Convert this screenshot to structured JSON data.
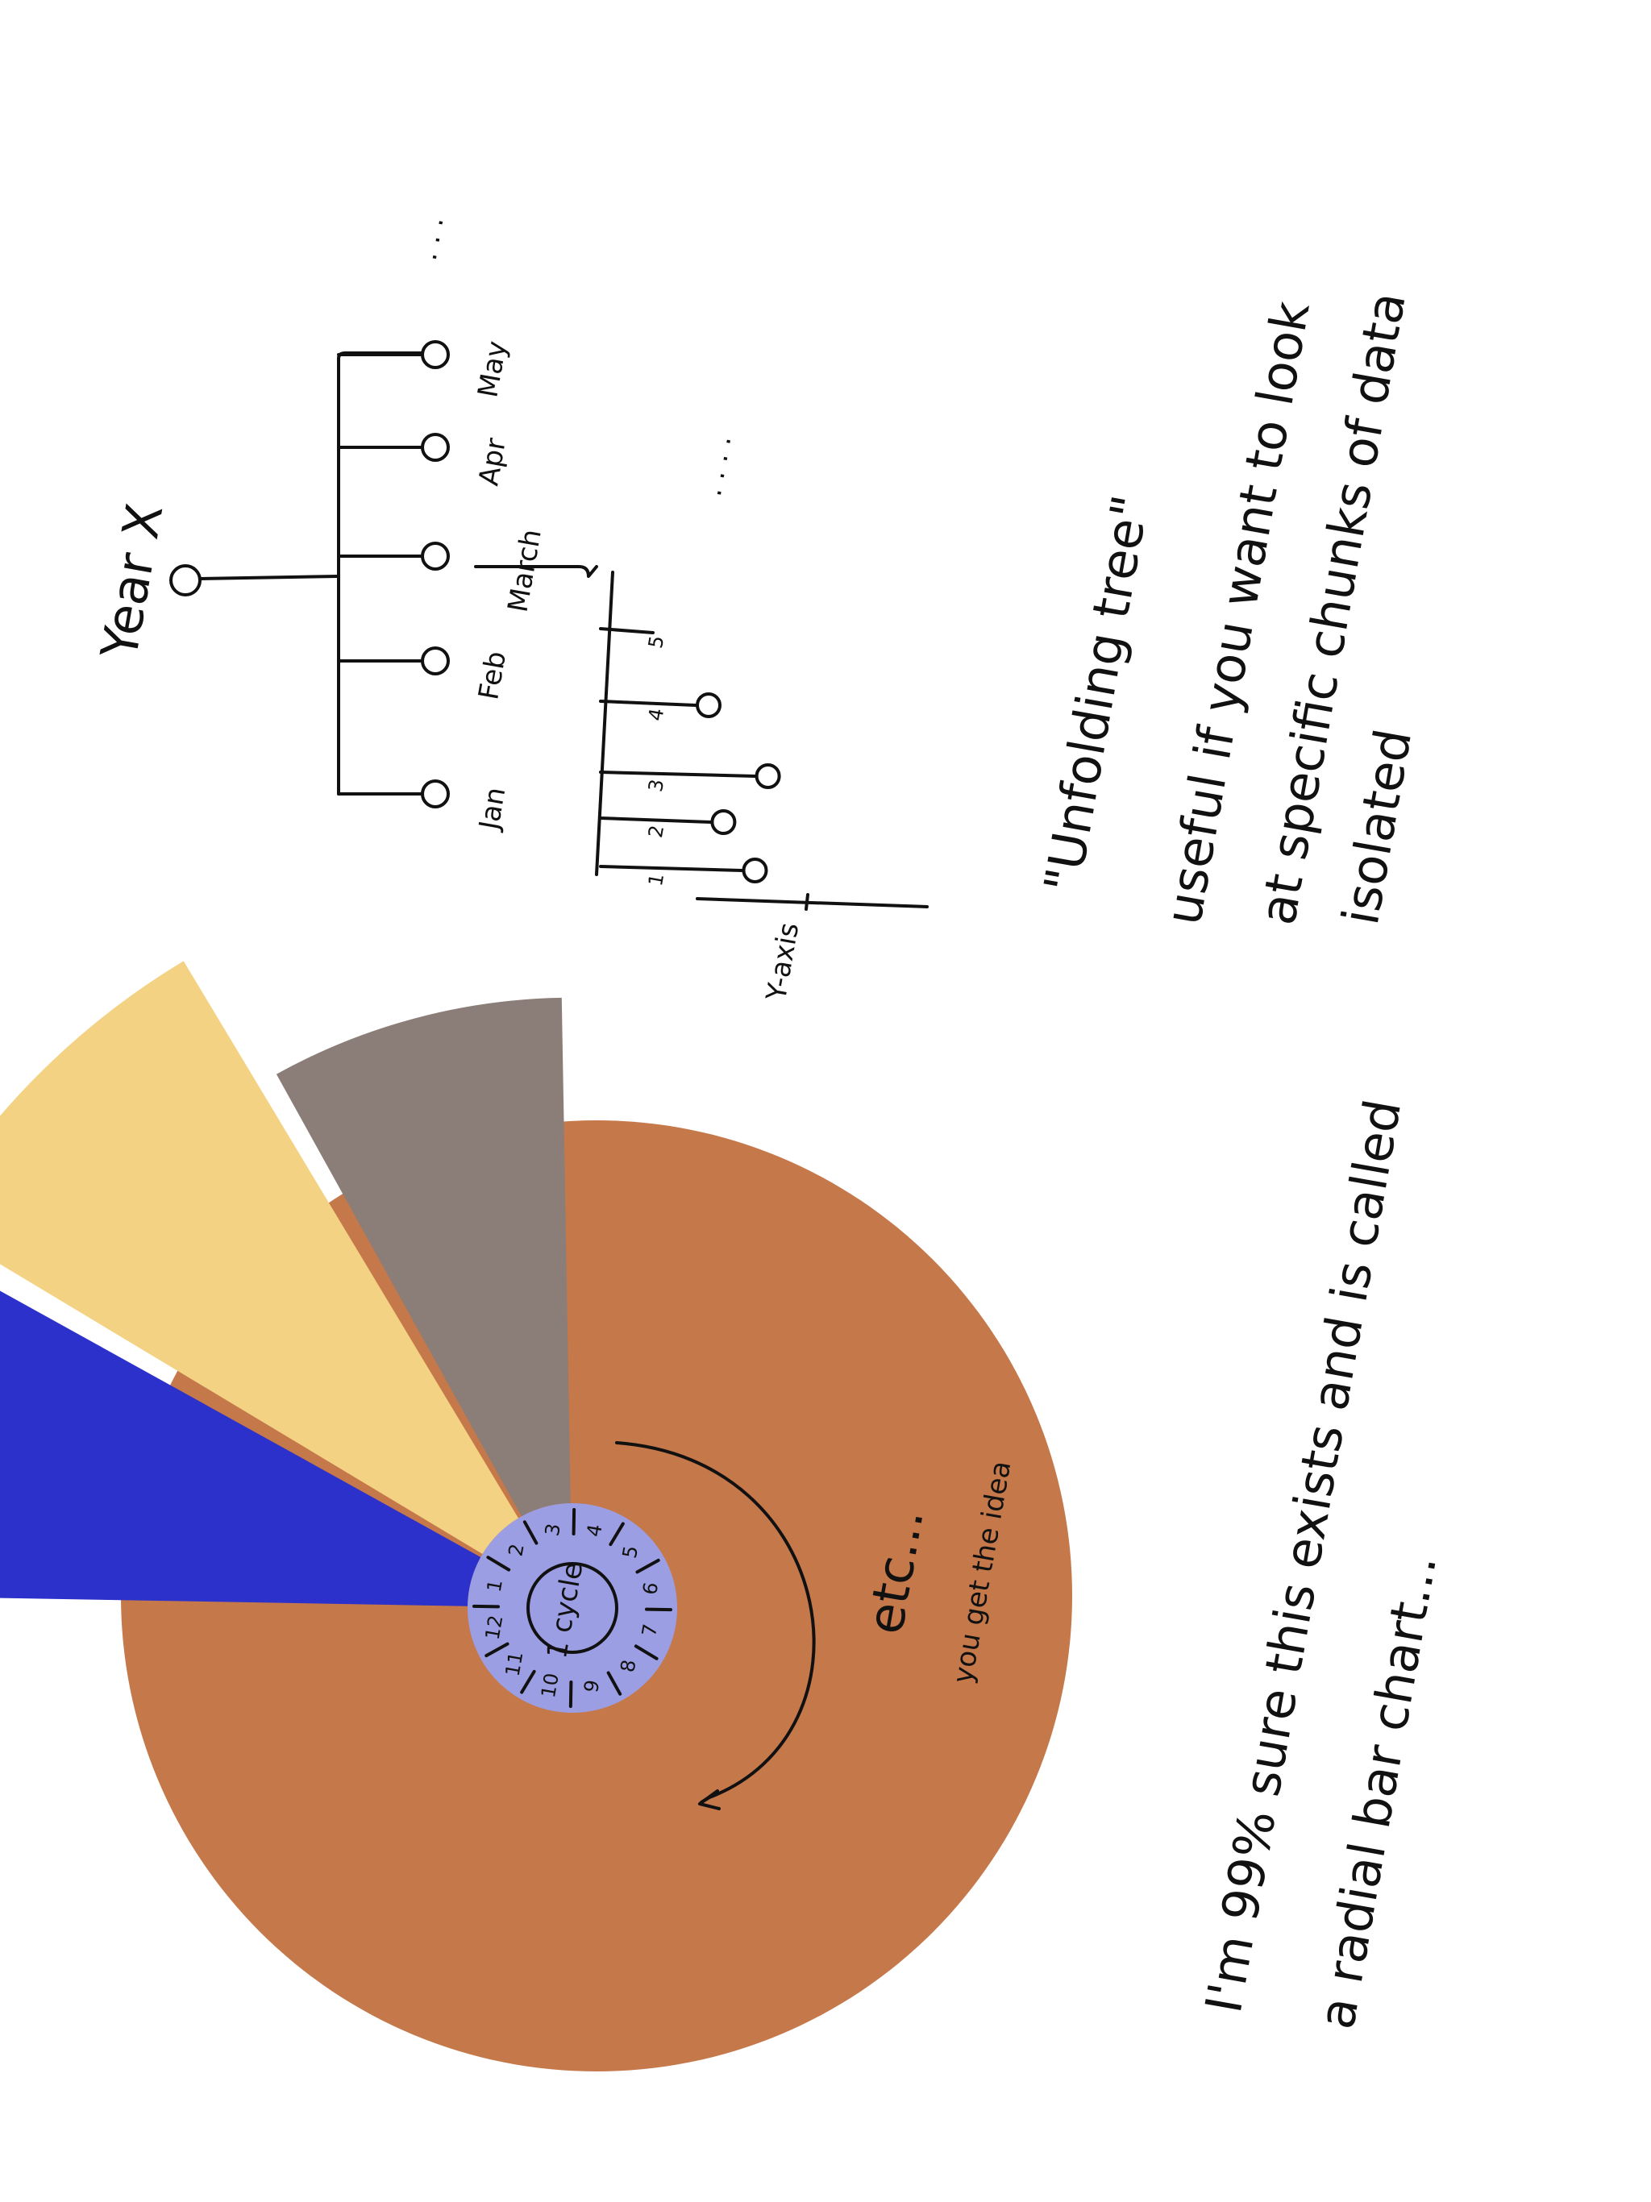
{
  "tree": {
    "root_label": "Year X",
    "months": [
      {
        "label": "Jan",
        "has_node": true
      },
      {
        "label": "Feb",
        "has_node": true
      },
      {
        "label": "March",
        "has_node": true
      },
      {
        "label": "Apr",
        "has_node": true
      },
      {
        "label": "May",
        "has_node": true
      }
    ],
    "ellipsis_months": ". . .",
    "ellipsis_days": ". . . .",
    "days": [
      {
        "label": "1",
        "value": 0.55
      },
      {
        "label": "2",
        "value": 0.38
      },
      {
        "label": "3",
        "value": 0.62
      },
      {
        "label": "4",
        "value": 0.3
      },
      {
        "label": "5",
        "value": 0.0
      }
    ],
    "y_axis_label": "Y-axis",
    "caption_title": "\"Unfolding tree\"",
    "caption_lines": [
      "useful if you want to look",
      "at specific chunks of data",
      "isolated"
    ]
  },
  "radial": {
    "center_label": "1 cycle",
    "months": [
      "1",
      "2",
      "3",
      "4",
      "5",
      "6",
      "7",
      "8",
      "9",
      "10",
      "11",
      "12"
    ],
    "colors": {
      "background_disc": "#c5784a",
      "inner_disc": "#9b9ee2",
      "bar_blue": "#2c31cc",
      "bar_yellow": "#f3d283",
      "bar_grey": "#8b7d77"
    },
    "bars": [
      {
        "month_slot": "1",
        "color": "#2c31cc",
        "value": 0.78
      },
      {
        "month_slot": "2",
        "color": "#f3d283",
        "value": 0.72
      },
      {
        "month_slot": "3",
        "color": "#8b7d77",
        "value": 0.56
      }
    ],
    "annotation_etc": "etc...",
    "annotation_idea": "you get the idea",
    "caption_lines": [
      "I'm 99% sure this exists and is called",
      "a radial bar chart..."
    ]
  }
}
